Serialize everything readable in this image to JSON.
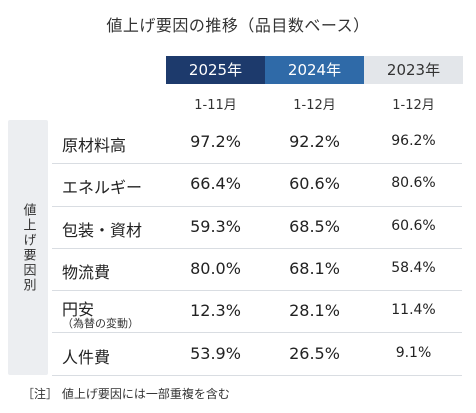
{
  "title": "値上げ要因の推移（品目数ベース）",
  "columns": [
    {
      "year": "2025年",
      "period": "1-11月",
      "color": "#1d3a6c"
    },
    {
      "year": "2024年",
      "period": "1-12月",
      "color": "#2f6aa8"
    },
    {
      "year": "2023年",
      "period": "1-12月",
      "color": "#e3e6ea"
    }
  ],
  "side_label": "値上げ要因別",
  "note": "［注］ 値上げ要因には一部重複を含む",
  "chart_data": {
    "type": "table",
    "title": "値上げ要因の推移（品目数ベース）",
    "columns": [
      "2025年 1-11月",
      "2024年 1-12月",
      "2023年 1-12月"
    ],
    "rows": [
      {
        "label": "原材料高",
        "sub": "",
        "values": [
          "97.2%",
          "92.2%",
          "96.2%"
        ]
      },
      {
        "label": "エネルギー",
        "sub": "",
        "values": [
          "66.4%",
          "60.6%",
          "80.6%"
        ]
      },
      {
        "label": "包装・資材",
        "sub": "",
        "values": [
          "59.3%",
          "68.5%",
          "60.6%"
        ]
      },
      {
        "label": "物流費",
        "sub": "",
        "values": [
          "80.0%",
          "68.1%",
          "58.4%"
        ]
      },
      {
        "label": "円安",
        "sub": "（為替の変動）",
        "values": [
          "12.3%",
          "28.1%",
          "11.4%"
        ]
      },
      {
        "label": "人件費",
        "sub": "",
        "values": [
          "53.9%",
          "26.5%",
          "9.1%"
        ]
      }
    ]
  }
}
